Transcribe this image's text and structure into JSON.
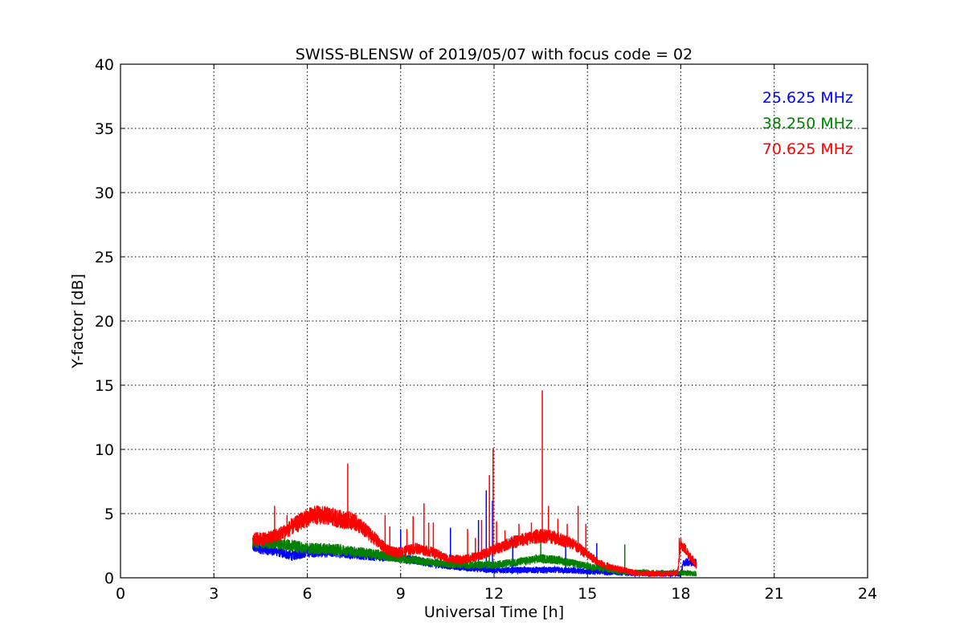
{
  "chart_data": {
    "type": "line",
    "title": "SWISS-BLENSW of 2019/05/07 with focus code = 02",
    "xlabel": "Universal Time [h]",
    "ylabel": "Y-factor [dB]",
    "xlim": [
      0,
      24
    ],
    "ylim": [
      0,
      40
    ],
    "xticks": [
      0,
      3,
      6,
      9,
      12,
      15,
      18,
      21,
      24
    ],
    "yticks": [
      0,
      5,
      10,
      15,
      20,
      25,
      30,
      35,
      40
    ],
    "grid": true,
    "legend_position": "top-right",
    "series": [
      {
        "name": "25.625 MHz",
        "color": "#0000ff",
        "x": [
          4.25,
          5.0,
          5.5,
          6.0,
          7.0,
          8.0,
          9.0,
          10.0,
          11.0,
          12.0,
          13.0,
          14.0,
          15.0,
          16.0,
          17.0,
          18.0,
          18.1,
          18.5
        ],
        "y": [
          2.4,
          2.1,
          1.7,
          2.0,
          2.0,
          1.7,
          1.6,
          1.1,
          0.8,
          0.6,
          0.6,
          0.6,
          0.5,
          0.4,
          0.3,
          0.3,
          1.2,
          1.2
        ],
        "spikes": [
          [
            9.0,
            3.8
          ],
          [
            10.6,
            3.9
          ],
          [
            11.5,
            4.5
          ],
          [
            11.75,
            6.8
          ],
          [
            11.95,
            6.0
          ],
          [
            12.6,
            3.0
          ],
          [
            14.3,
            2.8
          ],
          [
            15.3,
            2.7
          ]
        ]
      },
      {
        "name": "38.250 MHz",
        "color": "#008000",
        "x": [
          4.25,
          5.0,
          6.0,
          7.0,
          8.0,
          9.0,
          10.0,
          11.0,
          12.0,
          13.0,
          13.5,
          14.0,
          15.0,
          16.0,
          17.0,
          18.0,
          18.5
        ],
        "y": [
          2.8,
          2.7,
          2.3,
          2.2,
          1.9,
          1.5,
          1.2,
          1.0,
          1.0,
          1.3,
          1.5,
          1.4,
          0.9,
          0.5,
          0.4,
          0.4,
          0.3
        ],
        "spikes": [
          [
            6.9,
            2.6
          ],
          [
            11.85,
            2.8
          ],
          [
            13.5,
            3.8
          ],
          [
            16.2,
            2.6
          ]
        ]
      },
      {
        "name": "70.625 MHz",
        "color": "#ff0000",
        "x": [
          4.25,
          4.8,
          5.2,
          5.6,
          6.0,
          6.3,
          6.7,
          7.0,
          7.5,
          7.8,
          8.1,
          8.4,
          8.7,
          9.0,
          9.5,
          10.0,
          10.5,
          11.0,
          11.5,
          12.0,
          12.5,
          13.0,
          13.5,
          14.0,
          14.5,
          15.0,
          15.5,
          16.0,
          16.5,
          17.0,
          17.5,
          17.9,
          18.0,
          18.5
        ],
        "y": [
          3.0,
          3.1,
          3.5,
          4.1,
          4.7,
          4.9,
          4.8,
          4.6,
          4.4,
          3.8,
          3.2,
          2.5,
          2.0,
          2.0,
          2.3,
          2.0,
          1.5,
          1.4,
          1.7,
          2.2,
          2.7,
          3.0,
          3.3,
          3.1,
          2.7,
          1.8,
          1.0,
          0.7,
          0.4,
          0.3,
          0.3,
          0.4,
          2.7,
          1.0
        ],
        "spikes": [
          [
            4.95,
            5.6
          ],
          [
            5.35,
            4.9
          ],
          [
            5.8,
            5.1
          ],
          [
            7.3,
            8.9
          ],
          [
            8.5,
            4.9
          ],
          [
            8.65,
            4.0
          ],
          [
            9.2,
            3.8
          ],
          [
            9.4,
            4.8
          ],
          [
            9.75,
            5.8
          ],
          [
            9.9,
            4.3
          ],
          [
            10.05,
            4.3
          ],
          [
            11.15,
            3.8
          ],
          [
            11.4,
            3.1
          ],
          [
            11.6,
            4.5
          ],
          [
            11.85,
            8.0
          ],
          [
            11.97,
            10.1
          ],
          [
            12.08,
            4.4
          ],
          [
            12.35,
            3.7
          ],
          [
            12.8,
            4.2
          ],
          [
            13.2,
            4.3
          ],
          [
            13.55,
            14.6
          ],
          [
            13.75,
            5.6
          ],
          [
            14.05,
            4.6
          ],
          [
            14.35,
            4.2
          ],
          [
            14.7,
            5.6
          ],
          [
            14.95,
            4.2
          ],
          [
            17.95,
            3.1
          ]
        ]
      }
    ]
  }
}
